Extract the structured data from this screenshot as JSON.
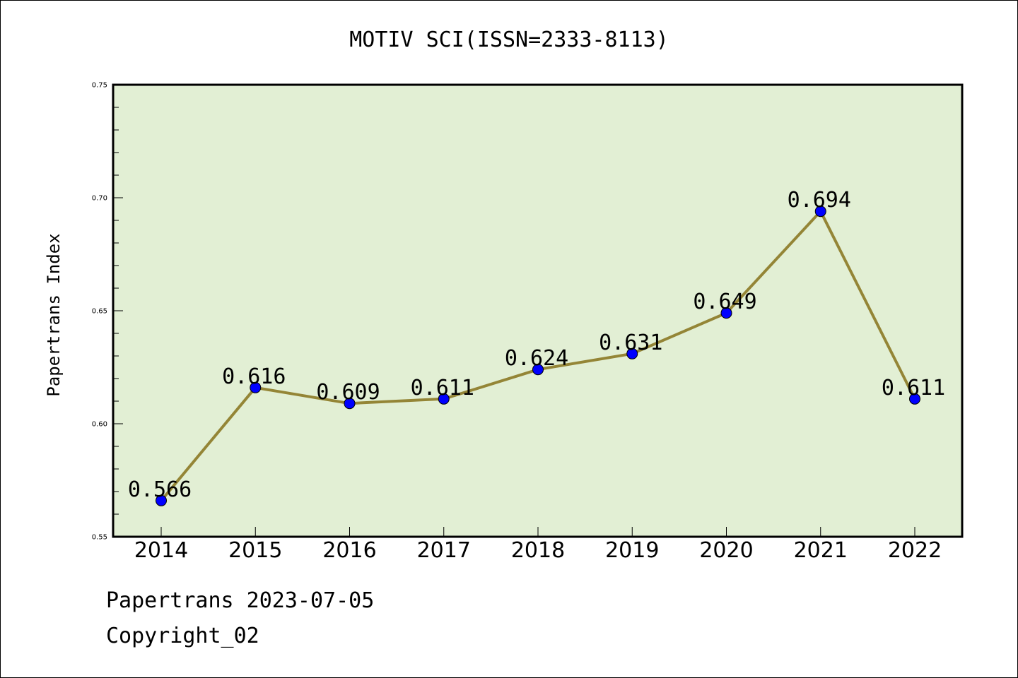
{
  "chart_data": {
    "type": "line",
    "title": "MOTIV SCI(ISSN=2333-8113)",
    "xlabel": "",
    "ylabel": "Papertrans Index",
    "categories": [
      "2014",
      "2015",
      "2016",
      "2017",
      "2018",
      "2019",
      "2020",
      "2021",
      "2022"
    ],
    "series": [
      {
        "values": [
          0.566,
          0.616,
          0.609,
          0.611,
          0.624,
          0.631,
          0.649,
          0.694,
          0.611
        ],
        "data_labels": [
          "0.566",
          "0.616",
          "0.609",
          "0.611",
          "0.624",
          "0.631",
          "0.649",
          "0.694",
          "0.611"
        ]
      }
    ],
    "ylim": [
      0.55,
      0.75
    ],
    "yticks": [
      0.55,
      0.6,
      0.65,
      0.7,
      0.75
    ],
    "ytick_labels": [
      "0.55",
      "0.60",
      "0.65",
      "0.70",
      "0.75"
    ],
    "grid": false,
    "colors": {
      "line": "#948536",
      "marker": "#0000ff",
      "plot_background": "#e2efd4",
      "frame": "#000000"
    }
  },
  "footer": {
    "source": "Papertrans 2023-07-05",
    "copyright": "Copyright_02"
  }
}
